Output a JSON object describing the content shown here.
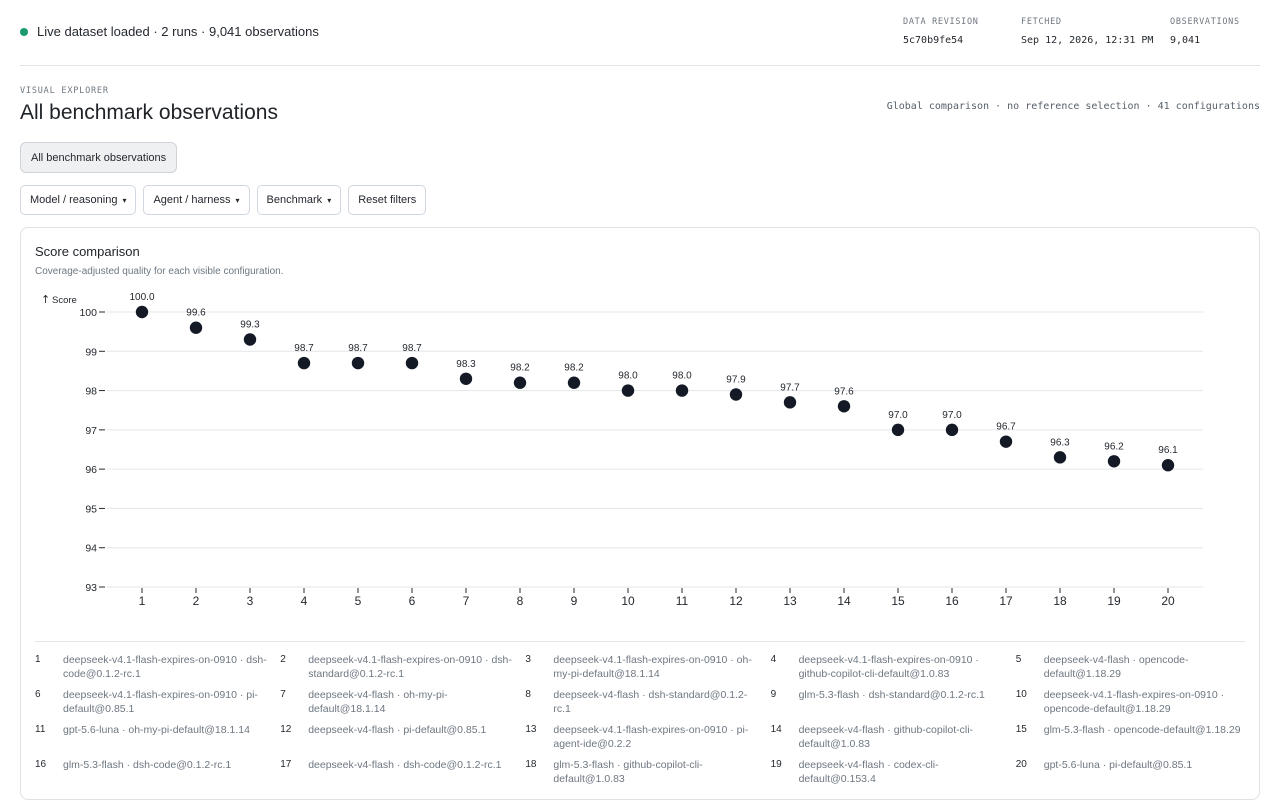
{
  "status": {
    "text": "Live dataset loaded · 2 runs · 9,041 observations",
    "color": "#1a9a6c"
  },
  "meta": [
    {
      "label": "DATA REVISION",
      "value": "5c70b9fe54"
    },
    {
      "label": "FETCHED",
      "value": "Sep 12, 2026, 12:31 PM"
    },
    {
      "label": "OBSERVATIONS",
      "value": "9,041"
    }
  ],
  "header": {
    "eyebrow": "VISUAL EXPLORER",
    "title": "All benchmark observations",
    "scope_note": "Global comparison · no reference selection · 41 configurations"
  },
  "selection_chip": "All benchmark observations",
  "filters": [
    {
      "label": "Model / reasoning",
      "caret": "▾"
    },
    {
      "label": "Agent / harness",
      "caret": "▾"
    },
    {
      "label": "Benchmark",
      "caret": "▾"
    },
    {
      "label": "Reset filters",
      "caret": ""
    }
  ],
  "card": {
    "title": "Score comparison",
    "subtitle": "Coverage-adjusted quality for each visible configuration."
  },
  "chart_data": {
    "type": "scatter",
    "ylabel": "Score",
    "ylabel_arrow": "↑",
    "ylim": [
      93,
      100
    ],
    "yticks": [
      93,
      94,
      95,
      96,
      97,
      98,
      99,
      100
    ],
    "grid": true,
    "point_color": "#131a26",
    "x": [
      1,
      2,
      3,
      4,
      5,
      6,
      7,
      8,
      9,
      10,
      11,
      12,
      13,
      14,
      15,
      16,
      17,
      18,
      19,
      20
    ],
    "values": [
      100.0,
      99.6,
      99.3,
      98.7,
      98.7,
      98.7,
      98.3,
      98.2,
      98.2,
      98.0,
      98.0,
      97.9,
      97.7,
      97.6,
      97.0,
      97.0,
      96.7,
      96.3,
      96.2,
      96.1
    ],
    "labels": [
      "100.0",
      "99.6",
      "99.3",
      "98.7",
      "98.7",
      "98.7",
      "98.3",
      "98.2",
      "98.2",
      "98.0",
      "98.0",
      "97.9",
      "97.7",
      "97.6",
      "97.0",
      "97.0",
      "96.7",
      "96.3",
      "96.2",
      "96.1"
    ]
  },
  "legend": [
    {
      "num": "1",
      "label": "deepseek-v4.1-flash-expires-on-0910 · dsh-code@0.1.2-rc.1"
    },
    {
      "num": "2",
      "label": "deepseek-v4.1-flash-expires-on-0910 · dsh-standard@0.1.2-rc.1"
    },
    {
      "num": "3",
      "label": "deepseek-v4.1-flash-expires-on-0910 · oh-my-pi-default@18.1.14"
    },
    {
      "num": "4",
      "label": "deepseek-v4.1-flash-expires-on-0910 · github-copilot-cli-default@1.0.83"
    },
    {
      "num": "5",
      "label": "deepseek-v4-flash · opencode-default@1.18.29"
    },
    {
      "num": "6",
      "label": "deepseek-v4.1-flash-expires-on-0910 · pi-default@0.85.1"
    },
    {
      "num": "7",
      "label": "deepseek-v4-flash · oh-my-pi-default@18.1.14"
    },
    {
      "num": "8",
      "label": "deepseek-v4-flash · dsh-standard@0.1.2-rc.1"
    },
    {
      "num": "9",
      "label": "glm-5.3-flash · dsh-standard@0.1.2-rc.1"
    },
    {
      "num": "10",
      "label": "deepseek-v4.1-flash-expires-on-0910 · opencode-default@1.18.29"
    },
    {
      "num": "11",
      "label": "gpt-5.6-luna · oh-my-pi-default@18.1.14"
    },
    {
      "num": "12",
      "label": "deepseek-v4-flash · pi-default@0.85.1"
    },
    {
      "num": "13",
      "label": "deepseek-v4.1-flash-expires-on-0910 · pi-agent-ide@0.2.2"
    },
    {
      "num": "14",
      "label": "deepseek-v4-flash · github-copilot-cli-default@1.0.83"
    },
    {
      "num": "15",
      "label": "glm-5.3-flash · opencode-default@1.18.29"
    },
    {
      "num": "16",
      "label": "glm-5.3-flash · dsh-code@0.1.2-rc.1"
    },
    {
      "num": "17",
      "label": "deepseek-v4-flash · dsh-code@0.1.2-rc.1"
    },
    {
      "num": "18",
      "label": "glm-5.3-flash · github-copilot-cli-default@1.0.83"
    },
    {
      "num": "19",
      "label": "deepseek-v4-flash · codex-cli-default@0.153.4"
    },
    {
      "num": "20",
      "label": "gpt-5.6-luna · pi-default@0.85.1"
    }
  ]
}
